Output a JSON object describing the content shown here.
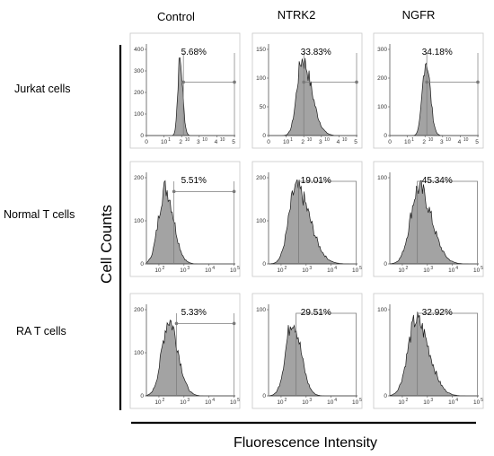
{
  "chart_data": {
    "type": "histogram-grid",
    "xlabel": "Fluorescence Intensity",
    "ylabel": "Cell Counts",
    "columns": [
      "Control",
      "NTRK2",
      "NGFR"
    ],
    "rows": [
      "Jurkat cells",
      "Normal T cells",
      "RA T cells"
    ],
    "x_scale": "log",
    "x_ticks": {
      "with_zero": [
        "0",
        "10",
        "2",
        "10",
        "3",
        "10",
        "4",
        "10",
        "5"
      ],
      "without_zero": [
        "10",
        "2",
        "10",
        "3",
        "10",
        "4",
        "10",
        "5"
      ]
    },
    "panels": [
      {
        "row": "Jurkat cells",
        "column": "Control",
        "percent": "5.68%",
        "ymax": 400,
        "yticks": [
          "0",
          "100",
          "200",
          "300",
          "400"
        ],
        "has_zero_tick": true,
        "gate_start_log": 2.1,
        "gate_style": "marker",
        "peak_log": 1.9,
        "spread": 0.14,
        "skew": 0.14
      },
      {
        "row": "Jurkat cells",
        "column": "NTRK2",
        "percent": "33.83%",
        "ymax": 150,
        "yticks": [
          "0",
          "50",
          "100",
          "150"
        ],
        "has_zero_tick": true,
        "gate_start_log": 2.0,
        "gate_style": "marker",
        "peak_log": 1.9,
        "spread": 0.42,
        "skew": 0.3
      },
      {
        "row": "Jurkat cells",
        "column": "NGFR",
        "percent": "34.18%",
        "ymax": 300,
        "yticks": [
          "0",
          "100",
          "200",
          "300"
        ],
        "has_zero_tick": true,
        "gate_start_log": 2.1,
        "gate_style": "marker",
        "peak_log": 2.05,
        "spread": 0.22,
        "skew": 0.1
      },
      {
        "row": "Normal T cells",
        "column": "Control",
        "percent": "5.51%",
        "ymax": 200,
        "yticks": [
          "0",
          "100",
          "200"
        ],
        "has_zero_tick": false,
        "gate_start_log": 2.6,
        "gate_style": "marker",
        "peak_log": 2.25,
        "spread": 0.3,
        "skew": 0.12
      },
      {
        "row": "Normal T cells",
        "column": "NTRK2",
        "percent": "19.01%",
        "ymax": 200,
        "yticks": [
          "0",
          "100",
          "200"
        ],
        "has_zero_tick": false,
        "gate_start_log": 2.7,
        "gate_style": "bracket",
        "peak_log": 2.6,
        "spread": 0.42,
        "skew": 0.3
      },
      {
        "row": "Normal T cells",
        "column": "NGFR",
        "percent": "45.34%",
        "ymax": 100,
        "yticks": [
          "0",
          "100"
        ],
        "has_zero_tick": false,
        "gate_start_log": 2.6,
        "gate_style": "bracket",
        "peak_log": 2.65,
        "spread": 0.42,
        "skew": 0.22
      },
      {
        "row": "RA T cells",
        "column": "Control",
        "percent": "5.33%",
        "ymax": 200,
        "yticks": [
          "0",
          "100",
          "200"
        ],
        "has_zero_tick": false,
        "gate_start_log": 2.7,
        "gate_style": "marker",
        "peak_log": 2.4,
        "spread": 0.32,
        "skew": 0.12
      },
      {
        "row": "RA T cells",
        "column": "NTRK2",
        "percent": "29.51%",
        "ymax": 100,
        "yticks": [
          "0",
          "100"
        ],
        "has_zero_tick": false,
        "gate_start_log": 2.6,
        "gate_style": "bracket",
        "peak_log": 2.45,
        "spread": 0.3,
        "skew": 0.12
      },
      {
        "row": "RA T cells",
        "column": "NGFR",
        "percent": "32.92%",
        "ymax": 100,
        "yticks": [
          "0",
          "100"
        ],
        "has_zero_tick": false,
        "gate_start_log": 2.6,
        "gate_style": "bracket",
        "peak_log": 2.55,
        "spread": 0.42,
        "skew": 0.22
      }
    ],
    "colors": {
      "histogram_fill": "#a3a3a3",
      "outline": "#1a1a1a",
      "gate_line": "#7a7a7a",
      "panel_border": "#c8c8c8"
    }
  }
}
